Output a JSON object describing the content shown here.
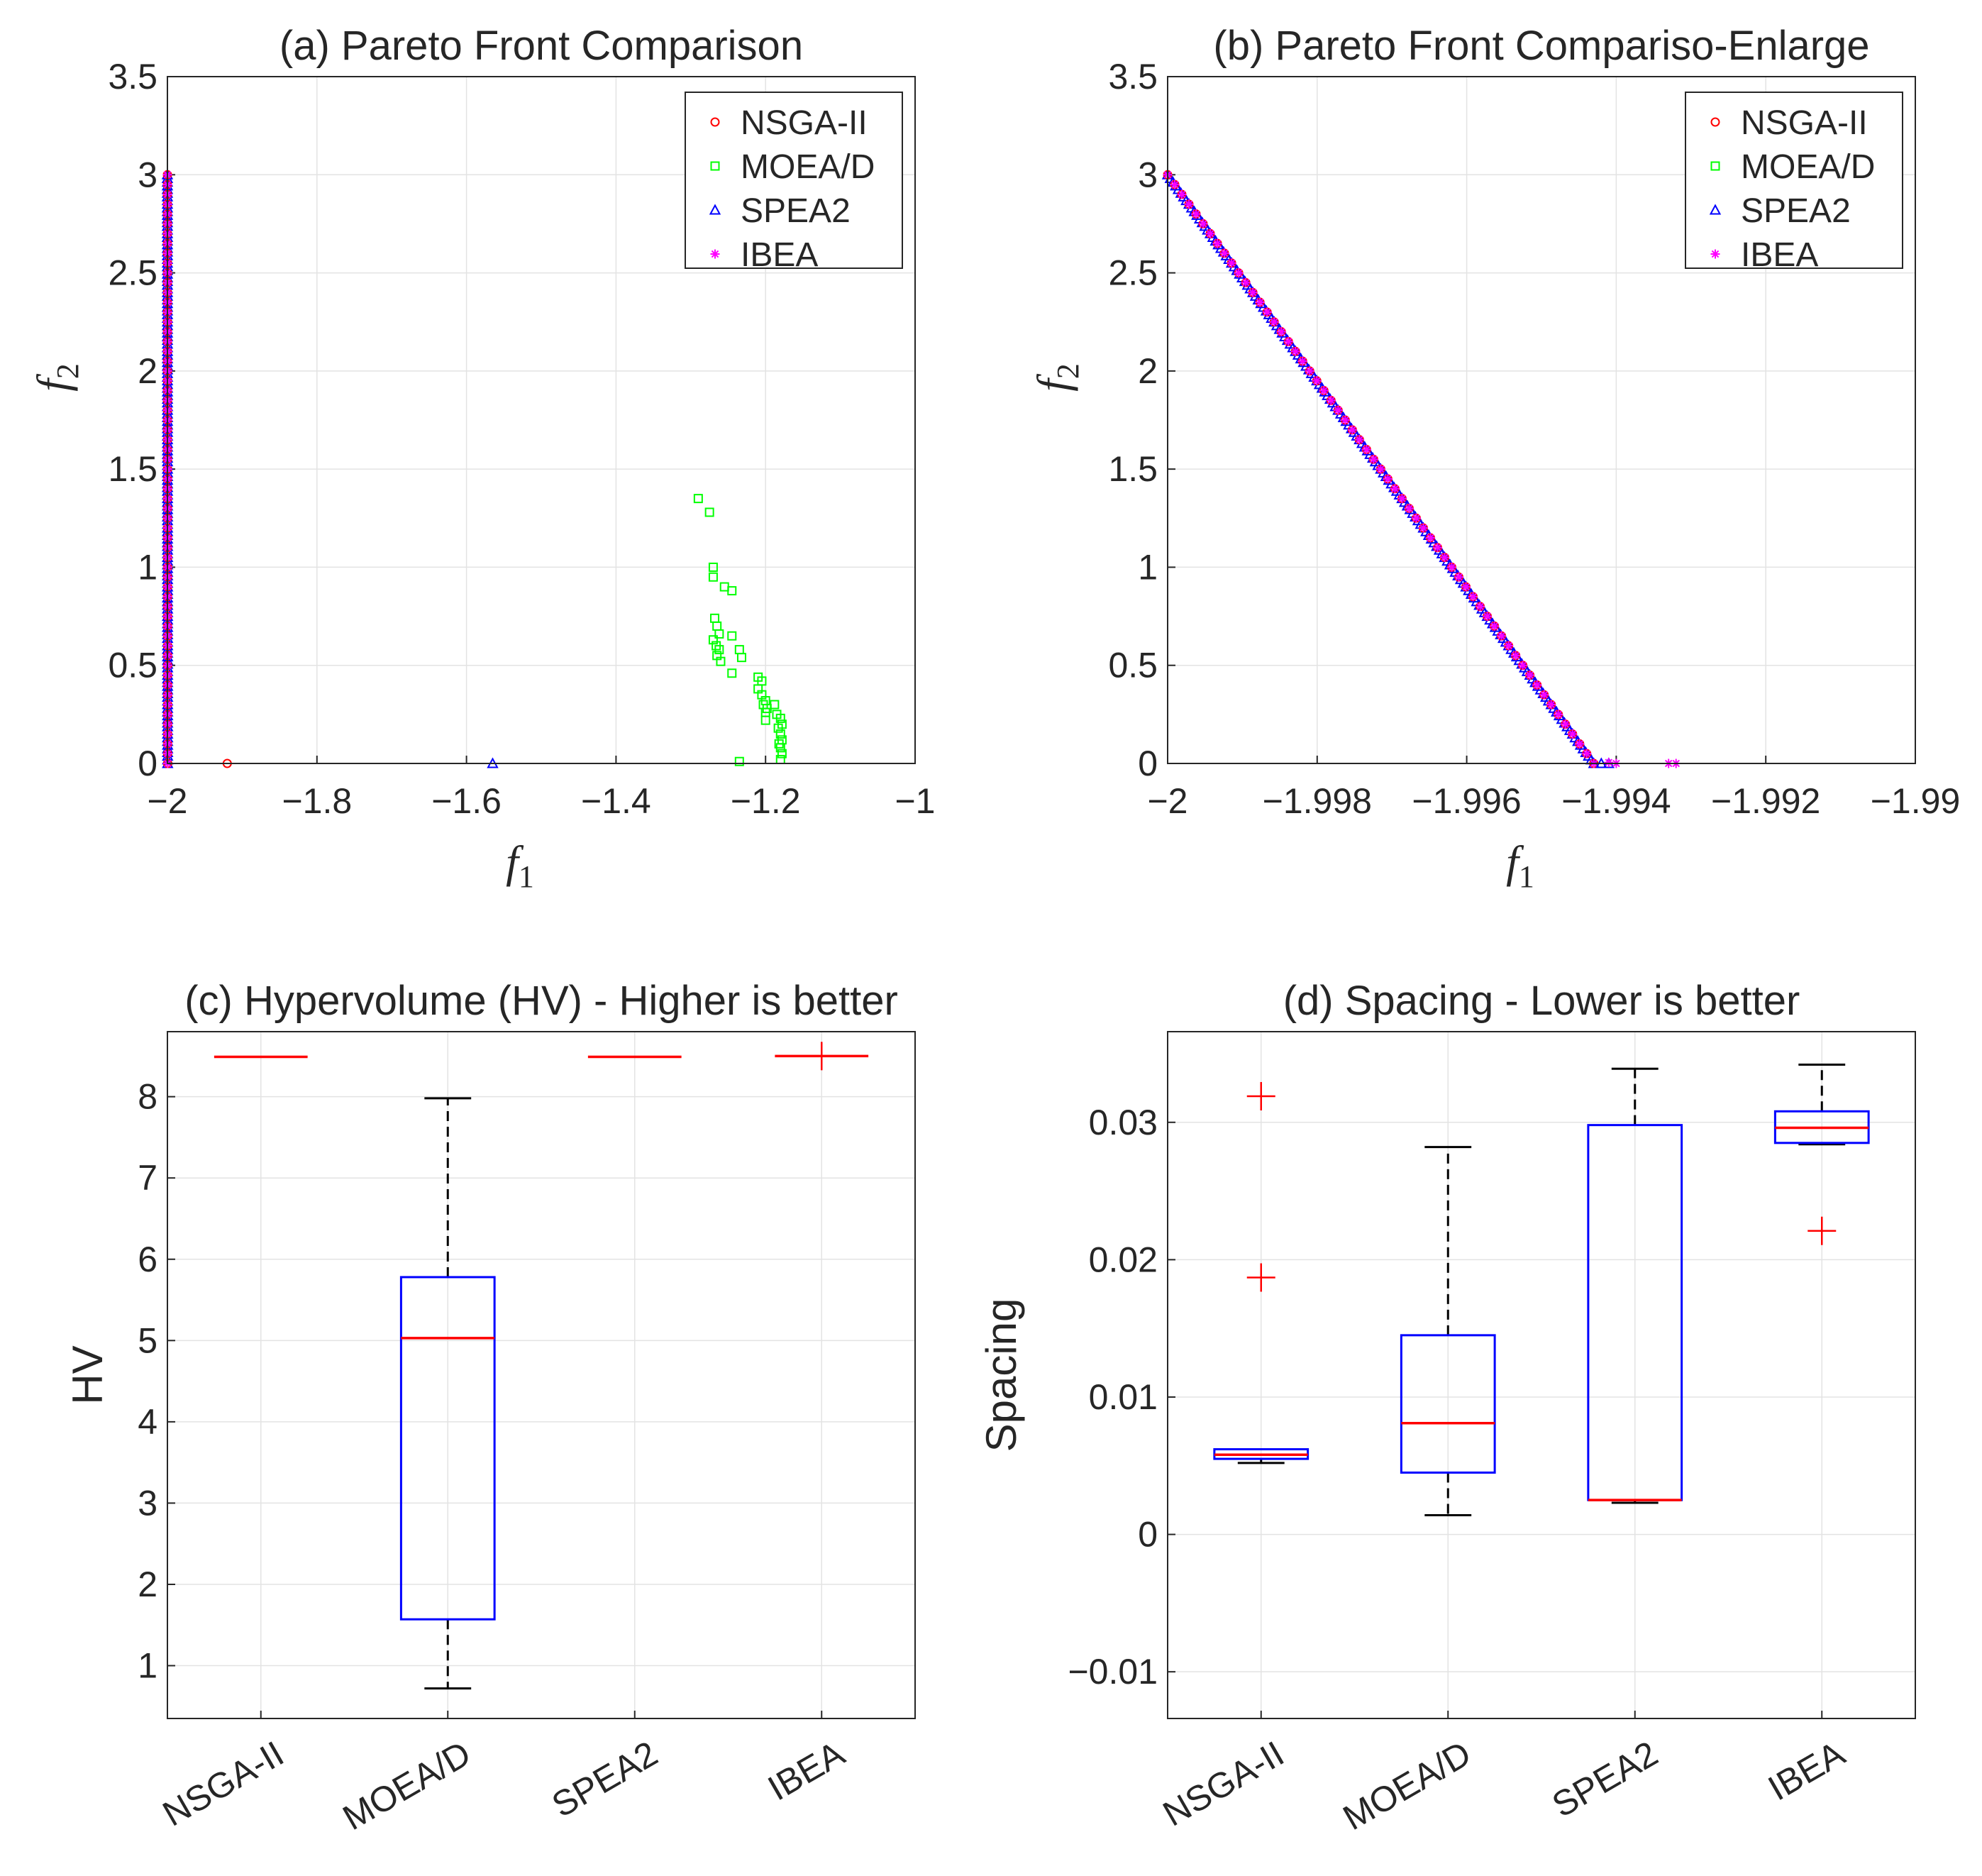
{
  "chart_data": [
    {
      "id": "a",
      "type": "scatter",
      "title": "(a) Pareto Front Comparison",
      "xlabel": "f1",
      "ylabel": "f2",
      "xlim": [
        -2,
        -1
      ],
      "ylim": [
        0,
        3.5
      ],
      "xticks": [
        -2,
        -1.8,
        -1.6,
        -1.4,
        -1.2,
        -1
      ],
      "xtick_labels": [
        "−2",
        "−1.8",
        "−1.6",
        "−1.4",
        "−1.2",
        "−1"
      ],
      "yticks": [
        0,
        0.5,
        1,
        1.5,
        2,
        2.5,
        3,
        3.5
      ],
      "ytick_labels": [
        "0",
        "0.5",
        "1",
        "1.5",
        "2",
        "2.5",
        "3",
        "3.5"
      ],
      "grid": true,
      "legend_position": "top-right",
      "series": [
        {
          "name": "NSGA-II",
          "marker": "circle",
          "color": "#ff0000",
          "front": [
            -2,
            3,
            -1.9997,
            0
          ],
          "points": [
            [
              -1.92,
              0
            ]
          ]
        },
        {
          "name": "MOEA/D",
          "marker": "square",
          "color": "#00ff00",
          "front": [
            -2,
            3,
            -1.9997,
            0
          ],
          "points": [
            [
              -1.29,
              1.35
            ],
            [
              -1.275,
              1.28
            ],
            [
              -1.27,
              1.0
            ],
            [
              -1.27,
              0.95
            ],
            [
              -1.255,
              0.9
            ],
            [
              -1.245,
              0.88
            ],
            [
              -1.268,
              0.74
            ],
            [
              -1.265,
              0.7
            ],
            [
              -1.262,
              0.66
            ],
            [
              -1.27,
              0.63
            ],
            [
              -1.266,
              0.6
            ],
            [
              -1.262,
              0.58
            ],
            [
              -1.265,
              0.55
            ],
            [
              -1.26,
              0.52
            ],
            [
              -1.245,
              0.65
            ],
            [
              -1.235,
              0.58
            ],
            [
              -1.232,
              0.54
            ],
            [
              -1.245,
              0.46
            ],
            [
              -1.21,
              0.44
            ],
            [
              -1.205,
              0.42
            ],
            [
              -1.21,
              0.38
            ],
            [
              -1.205,
              0.35
            ],
            [
              -1.2,
              0.32
            ],
            [
              -1.203,
              0.3
            ],
            [
              -1.198,
              0.28
            ],
            [
              -1.2,
              0.26
            ],
            [
              -1.2,
              0.22
            ],
            [
              -1.188,
              0.3
            ],
            [
              -1.185,
              0.25
            ],
            [
              -1.18,
              0.23
            ],
            [
              -1.178,
              0.2
            ],
            [
              -1.183,
              0.18
            ],
            [
              -1.18,
              0.15
            ],
            [
              -1.178,
              0.12
            ],
            [
              -1.182,
              0.1
            ],
            [
              -1.18,
              0.08
            ],
            [
              -1.178,
              0.05
            ],
            [
              -1.18,
              0.02
            ],
            [
              -1.235,
              0.01
            ]
          ]
        },
        {
          "name": "SPEA2",
          "marker": "triangle",
          "color": "#0000ff",
          "front": [
            -2,
            3,
            -1.9997,
            0
          ],
          "points": [
            [
              -1.565,
              0
            ]
          ]
        },
        {
          "name": "IBEA",
          "marker": "star",
          "color": "#ff00ff",
          "front": [
            -2,
            3,
            -1.9997,
            0
          ],
          "points": []
        }
      ]
    },
    {
      "id": "b",
      "type": "scatter",
      "title": "(b) Pareto Front Compariso-Enlarge",
      "xlabel": "f1",
      "ylabel": "f2",
      "xlim": [
        -2,
        -1.99
      ],
      "ylim": [
        0,
        3.5
      ],
      "xticks": [
        -2,
        -1.998,
        -1.996,
        -1.994,
        -1.992,
        -1.99
      ],
      "xtick_labels": [
        "−2",
        "−1.998",
        "−1.996",
        "−1.994",
        "−1.992",
        "−1.99"
      ],
      "yticks": [
        0,
        0.5,
        1,
        1.5,
        2,
        2.5,
        3,
        3.5
      ],
      "ytick_labels": [
        "0",
        "0.5",
        "1",
        "1.5",
        "2",
        "2.5",
        "3",
        "3.5"
      ],
      "grid": true,
      "legend_position": "top-right",
      "series": [
        {
          "name": "NSGA-II",
          "marker": "circle",
          "color": "#ff0000",
          "front": [
            -2,
            3,
            -1.9943,
            0
          ],
          "points": []
        },
        {
          "name": "MOEA/D",
          "marker": "square",
          "color": "#00ff00",
          "front": [
            -2,
            3,
            -1.9943,
            0
          ],
          "points": []
        },
        {
          "name": "SPEA2",
          "marker": "triangle",
          "color": "#0000ff",
          "front": [
            -2,
            3,
            -1.9943,
            0
          ],
          "points": [
            [
              -1.9942,
              0
            ],
            [
              -1.9941,
              0
            ]
          ]
        },
        {
          "name": "IBEA",
          "marker": "star",
          "color": "#ff00ff",
          "front": [
            -2,
            3,
            -1.9943,
            0
          ],
          "points": [
            [
              -1.9941,
              0.005
            ],
            [
              -1.994,
              0
            ],
            [
              -1.9933,
              0
            ],
            [
              -1.9932,
              0
            ]
          ]
        }
      ]
    },
    {
      "id": "c",
      "type": "box",
      "title": "(c) Hypervolume (HV) - Higher is better",
      "xlabel": "",
      "ylabel": "HV",
      "ylim": [
        0.35,
        8.8
      ],
      "yticks": [
        1,
        2,
        3,
        4,
        5,
        6,
        7,
        8
      ],
      "ytick_labels": [
        "1",
        "2",
        "3",
        "4",
        "5",
        "6",
        "7",
        "8"
      ],
      "categories": [
        "NSGA-II",
        "MOEA/D",
        "SPEA2",
        "IBEA"
      ],
      "grid": true,
      "boxes": [
        {
          "whisker_low": 8.49,
          "q1": 8.49,
          "median": 8.49,
          "q3": 8.49,
          "whisker_high": 8.49,
          "outliers": []
        },
        {
          "whisker_low": 0.72,
          "q1": 1.57,
          "median": 5.03,
          "q3": 5.78,
          "whisker_high": 7.98,
          "outliers": []
        },
        {
          "whisker_low": 8.49,
          "q1": 8.49,
          "median": 8.49,
          "q3": 8.49,
          "whisker_high": 8.49,
          "outliers": []
        },
        {
          "whisker_low": 8.5,
          "q1": 8.5,
          "median": 8.5,
          "q3": 8.5,
          "whisker_high": 8.5,
          "outliers": [
            8.5
          ]
        }
      ]
    },
    {
      "id": "d",
      "type": "box",
      "title": "(d)  Spacing - Lower is better",
      "xlabel": "",
      "ylabel": "Spacing",
      "ylim": [
        -0.0134,
        0.0366
      ],
      "yticks": [
        -0.01,
        0,
        0.01,
        0.02,
        0.03
      ],
      "ytick_labels": [
        "−0.01",
        "0",
        "0.01",
        "0.02",
        "0.03"
      ],
      "categories": [
        "NSGA-II",
        "MOEA/D",
        "SPEA2",
        "IBEA"
      ],
      "grid": true,
      "boxes": [
        {
          "whisker_low": 0.0052,
          "q1": 0.0055,
          "median": 0.0058,
          "q3": 0.0062,
          "whisker_high": 0.0062,
          "outliers": [
            0.0319,
            0.0187
          ]
        },
        {
          "whisker_low": 0.0014,
          "q1": 0.0045,
          "median": 0.0081,
          "q3": 0.0145,
          "whisker_high": 0.0282,
          "outliers": []
        },
        {
          "whisker_low": 0.0023,
          "q1": 0.0025,
          "median": 0.0025,
          "q3": 0.0298,
          "whisker_high": 0.0339,
          "outliers": []
        },
        {
          "whisker_low": 0.0284,
          "q1": 0.0285,
          "median": 0.0296,
          "q3": 0.0308,
          "whisker_high": 0.0342,
          "outliers": [
            0.0221
          ]
        }
      ]
    }
  ]
}
